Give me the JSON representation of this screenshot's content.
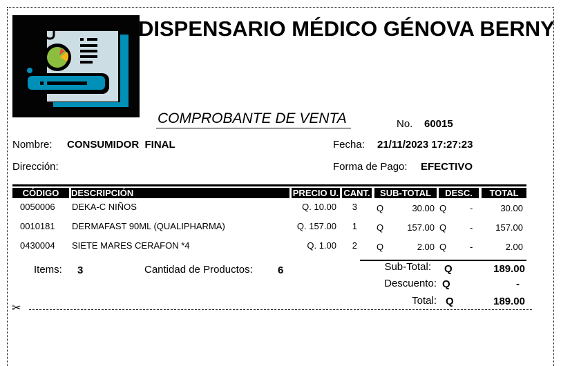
{
  "header": {
    "title": "DISPENSARIO MÉDICO GÉNOVA BERNY",
    "subtitle": "COMPROBANTE DE VENTA",
    "number_label": "No.",
    "number": "60015",
    "logo_icon": "report-document-pie-chart-icon"
  },
  "customer": {
    "name_label": "Nombre:",
    "name": "CONSUMIDOR  FINAL",
    "address_label": "Dirección:",
    "address": "",
    "date_label": "Fecha:",
    "date": "21/11/2023 17:27:23",
    "payment_label": "Forma de Pago:",
    "payment": "EFECTIVO"
  },
  "table": {
    "columns": [
      "CÓDIGO",
      "DESCRIPCIÓN",
      "PRECIO U.",
      "CANT.",
      "SUB-TOTAL",
      "DESC.",
      "TOTAL"
    ],
    "rows": [
      {
        "code": "0050006",
        "desc": "DEKA-C NIÑOS",
        "price": "Q. 10.00",
        "qty": "3",
        "cur": "Q",
        "subtotal": "30.00",
        "cur2": "Q",
        "discount": "-",
        "total": "30.00"
      },
      {
        "code": "0010181",
        "desc": "DERMAFAST 90ML (QUALIPHARMA)",
        "price": "Q. 157.00",
        "qty": "1",
        "cur": "Q",
        "subtotal": "157.00",
        "cur2": "Q",
        "discount": "-",
        "total": "157.00"
      },
      {
        "code": "0430004",
        "desc": "SIETE MARES CERAFON *4",
        "price": "Q. 1.00",
        "qty": "2",
        "cur": "Q",
        "subtotal": "2.00",
        "cur2": "Q",
        "discount": "-",
        "total": "2.00"
      }
    ]
  },
  "summary": {
    "items_label": "Items:",
    "items": "3",
    "products_label": "Cantidad de Productos:",
    "products": "6",
    "subtotal_label": "Sub-Total:",
    "subtotal_cur": "Q",
    "subtotal": "189.00",
    "discount_label": "Descuento:",
    "discount_cur": "Q",
    "discount": "-",
    "total_label": "Total:",
    "total_cur": "Q",
    "total": "189.00"
  },
  "cut_icon": "scissors-icon"
}
